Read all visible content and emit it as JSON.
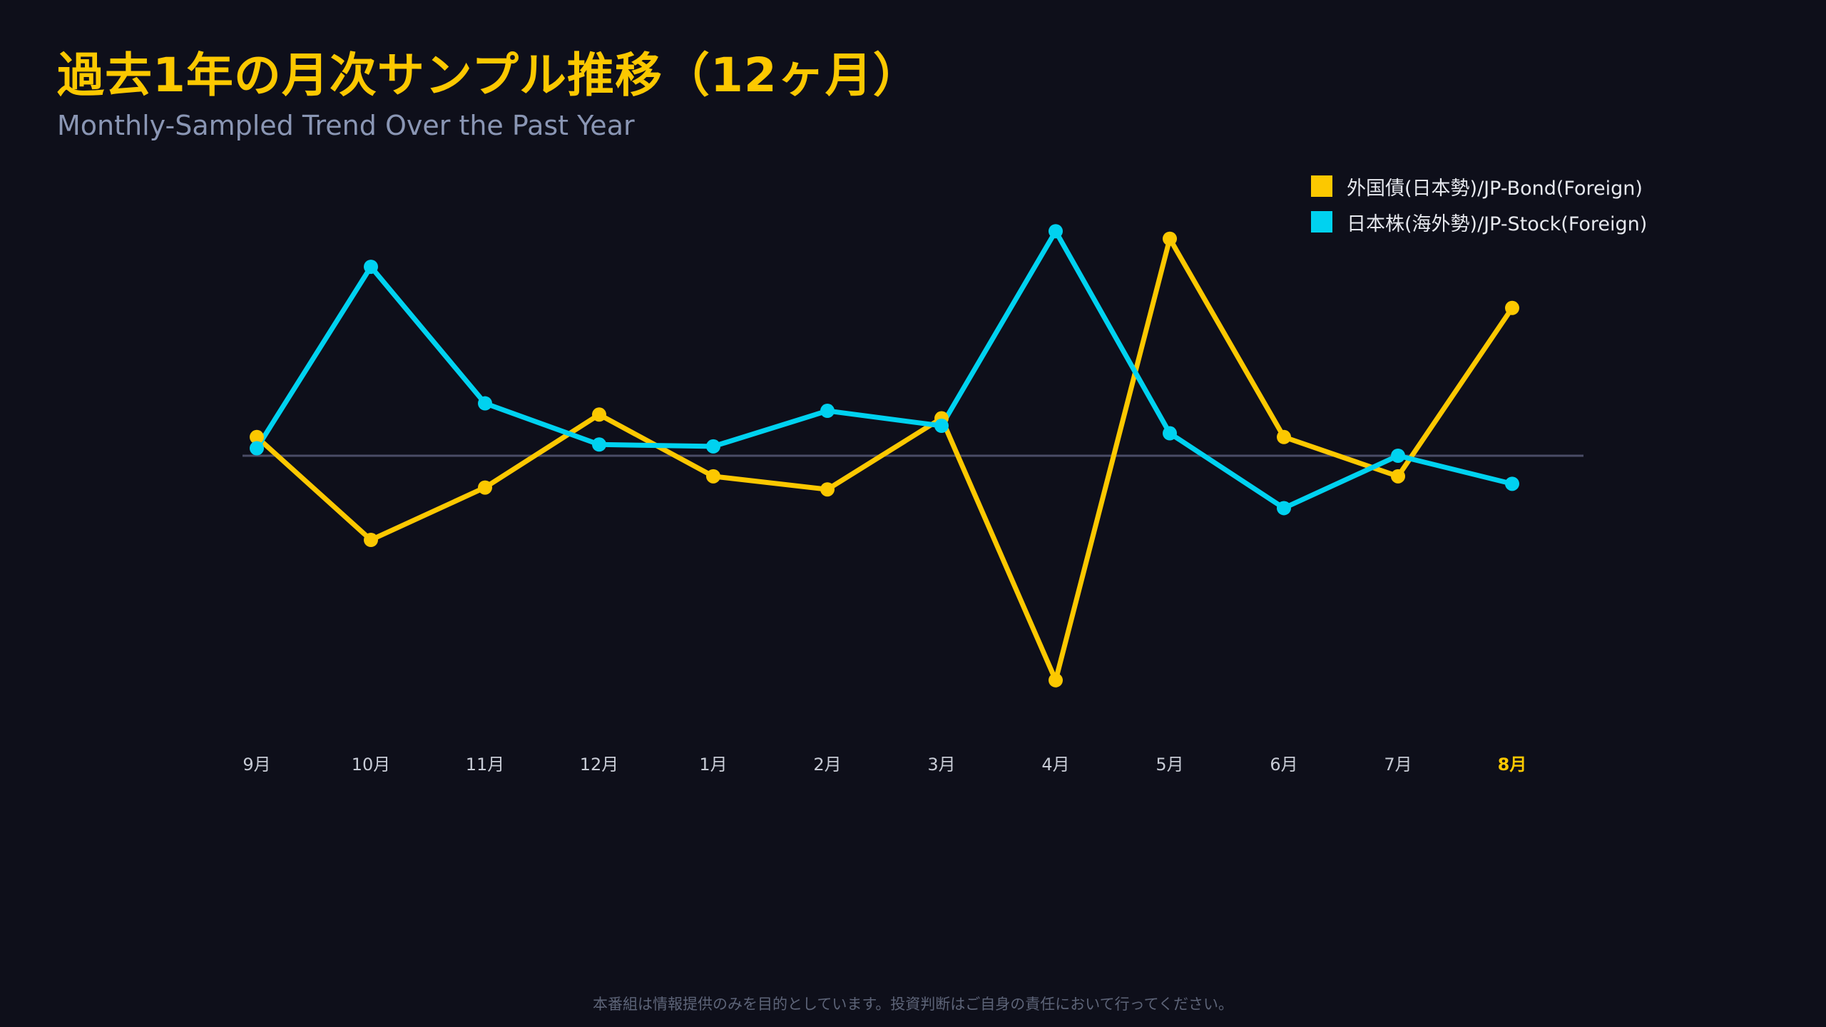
{
  "title": "過去1年の月次サンプル推移（12ヶ月）",
  "subtitle": "Monthly-Sampled Trend Over the Past Year",
  "footer": "本番組は情報提供のみを目的としています。投資判断はご自身の責任において行ってください。",
  "colors": {
    "background": "#0e0f1a",
    "accent": "#fcc800",
    "series_bond": "#fcc800",
    "series_stock": "#00d2f0",
    "zero_line": "#4a4c66"
  },
  "chart_data": {
    "type": "line",
    "categories": [
      "9月",
      "10月",
      "11月",
      "12月",
      "1月",
      "2月",
      "3月",
      "4月",
      "5月",
      "6月",
      "7月",
      "8月"
    ],
    "highlight_category": "8月",
    "series": [
      {
        "name": "外国債(日本勢)/JP-Bond(Foreign)",
        "color": "#fcc800",
        "values": [
          0.1,
          -0.45,
          -0.17,
          0.22,
          -0.11,
          -0.18,
          0.2,
          -1.2,
          1.16,
          0.1,
          -0.11,
          0.79
        ]
      },
      {
        "name": "日本株(海外勢)/JP-Stock(Foreign)",
        "color": "#00d2f0",
        "values": [
          0.04,
          1.01,
          0.28,
          0.06,
          0.05,
          0.24,
          0.16,
          1.2,
          0.12,
          -0.28,
          0.0,
          -0.15
        ]
      }
    ],
    "ylim": [
      -1.3,
      1.3
    ],
    "zero_line": true,
    "grid": false,
    "y_axis_labels": false,
    "legend_position": "top-right"
  }
}
